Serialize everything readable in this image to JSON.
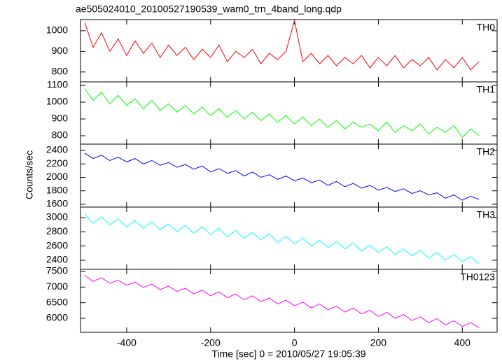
{
  "chart_data": [
    {
      "type": "line",
      "title": "ae505024010_20100527190539_wam0_trn_4band_long.qdp",
      "x": [
        -500,
        -480,
        -460,
        -440,
        -420,
        -400,
        -380,
        -360,
        -340,
        -320,
        -300,
        -280,
        -260,
        -240,
        -220,
        -200,
        -180,
        -160,
        -140,
        -120,
        -100,
        -80,
        -60,
        -40,
        -20,
        0,
        20,
        40,
        60,
        80,
        100,
        120,
        140,
        160,
        180,
        200,
        220,
        240,
        260,
        280,
        300,
        320,
        340,
        360,
        380,
        400,
        420,
        440
      ],
      "series": [
        {
          "name": "TH0",
          "color": "#ff0000",
          "values": [
            1040,
            920,
            990,
            900,
            960,
            880,
            950,
            890,
            940,
            870,
            930,
            880,
            920,
            860,
            910,
            870,
            930,
            850,
            900,
            870,
            910,
            840,
            890,
            860,
            900,
            1050,
            850,
            890,
            840,
            880,
            830,
            870,
            840,
            880,
            820,
            870,
            830,
            880,
            820,
            860,
            830,
            870,
            810,
            860,
            820,
            870,
            810,
            850
          ]
        }
      ],
      "xlim": [
        -510,
        483
      ],
      "xticks": [
        -400,
        -200,
        0,
        200,
        400
      ],
      "ylim": [
        752,
        1054
      ],
      "yticks": [
        800,
        900,
        1000
      ]
    },
    {
      "type": "line",
      "x": [
        -500,
        -480,
        -460,
        -440,
        -420,
        -400,
        -380,
        -360,
        -340,
        -320,
        -300,
        -280,
        -260,
        -240,
        -220,
        -200,
        -180,
        -160,
        -140,
        -120,
        -100,
        -80,
        -60,
        -40,
        -20,
        0,
        20,
        40,
        60,
        80,
        100,
        120,
        140,
        160,
        180,
        200,
        220,
        240,
        260,
        280,
        300,
        320,
        340,
        360,
        380,
        400,
        420,
        440
      ],
      "series": [
        {
          "name": "TH1",
          "color": "#00ff00",
          "values": [
            1080,
            1010,
            1060,
            990,
            1040,
            980,
            1020,
            960,
            1010,
            950,
            990,
            940,
            980,
            930,
            970,
            920,
            960,
            910,
            950,
            900,
            940,
            890,
            930,
            880,
            920,
            870,
            910,
            860,
            900,
            850,
            890,
            840,
            880,
            850,
            870,
            830,
            880,
            820,
            860,
            830,
            870,
            810,
            850,
            820,
            860,
            790,
            840,
            800
          ]
        }
      ],
      "xlim": [
        -510,
        483
      ],
      "xticks": [
        -400,
        -200,
        0,
        200,
        400
      ],
      "ylim": [
        750,
        1121
      ],
      "yticks": [
        800,
        900,
        1000,
        1100
      ]
    },
    {
      "type": "line",
      "ylabel": "Counts/sec",
      "x": [
        -500,
        -480,
        -460,
        -440,
        -420,
        -400,
        -380,
        -360,
        -340,
        -320,
        -300,
        -280,
        -260,
        -240,
        -220,
        -200,
        -180,
        -160,
        -140,
        -120,
        -100,
        -80,
        -60,
        -40,
        -20,
        0,
        20,
        40,
        60,
        80,
        100,
        120,
        140,
        160,
        180,
        200,
        220,
        240,
        260,
        280,
        300,
        320,
        340,
        360,
        380,
        400,
        420,
        440
      ],
      "series": [
        {
          "name": "TH2",
          "color": "#0000ff",
          "values": [
            2360,
            2280,
            2330,
            2250,
            2300,
            2230,
            2280,
            2200,
            2250,
            2180,
            2220,
            2150,
            2190,
            2120,
            2170,
            2080,
            2130,
            2060,
            2100,
            2020,
            2080,
            2000,
            2040,
            1970,
            2020,
            1950,
            1990,
            1920,
            1960,
            1880,
            1940,
            1860,
            1910,
            1840,
            1880,
            1810,
            1850,
            1790,
            1830,
            1760,
            1800,
            1740,
            1770,
            1690,
            1740,
            1660,
            1720,
            1670
          ]
        }
      ],
      "xlim": [
        -510,
        483
      ],
      "xticks": [
        -400,
        -200,
        0,
        200,
        400
      ],
      "ylim": [
        1558,
        2494
      ],
      "yticks": [
        1600,
        1800,
        2000,
        2200,
        2400
      ]
    },
    {
      "type": "line",
      "x": [
        -500,
        -480,
        -460,
        -440,
        -420,
        -400,
        -380,
        -360,
        -340,
        -320,
        -300,
        -280,
        -260,
        -240,
        -220,
        -200,
        -180,
        -160,
        -140,
        -120,
        -100,
        -80,
        -60,
        -40,
        -20,
        0,
        20,
        40,
        60,
        80,
        100,
        120,
        140,
        160,
        180,
        200,
        220,
        240,
        260,
        280,
        300,
        320,
        340,
        360,
        380,
        400,
        420,
        440
      ],
      "series": [
        {
          "name": "TH3",
          "color": "#00ffff",
          "values": [
            3050,
            2920,
            3010,
            2900,
            2980,
            2870,
            2960,
            2850,
            2940,
            2830,
            2910,
            2800,
            2890,
            2780,
            2870,
            2760,
            2850,
            2730,
            2820,
            2710,
            2790,
            2690,
            2770,
            2650,
            2740,
            2630,
            2710,
            2600,
            2680,
            2580,
            2660,
            2560,
            2640,
            2530,
            2610,
            2510,
            2590,
            2480,
            2560,
            2460,
            2540,
            2430,
            2510,
            2400,
            2480,
            2380,
            2450,
            2350
          ]
        }
      ],
      "xlim": [
        -510,
        483
      ],
      "xticks": [
        -400,
        -200,
        0,
        200,
        400
      ],
      "ylim": [
        2272,
        3148
      ],
      "yticks": [
        2400,
        2600,
        2800,
        3000
      ]
    },
    {
      "type": "line",
      "xlabel": "Time [sec] 0 = 2010/05/27 19:05:39",
      "x": [
        -500,
        -480,
        -460,
        -440,
        -420,
        -400,
        -380,
        -360,
        -340,
        -320,
        -300,
        -280,
        -260,
        -240,
        -220,
        -200,
        -180,
        -160,
        -140,
        -120,
        -100,
        -80,
        -60,
        -40,
        -20,
        0,
        20,
        40,
        60,
        80,
        100,
        120,
        140,
        160,
        180,
        200,
        220,
        240,
        260,
        280,
        300,
        320,
        340,
        360,
        380,
        400,
        420,
        440
      ],
      "series": [
        {
          "name": "TH0123",
          "color": "#ff00ff",
          "values": [
            7380,
            7180,
            7300,
            7120,
            7220,
            7060,
            7160,
            6990,
            7100,
            6920,
            7030,
            6860,
            6960,
            6780,
            6900,
            6720,
            6850,
            6660,
            6780,
            6590,
            6720,
            6530,
            6650,
            6460,
            6580,
            6400,
            6520,
            6330,
            6460,
            6270,
            6390,
            6200,
            6330,
            6140,
            6260,
            6060,
            6190,
            6000,
            6120,
            5930,
            6050,
            5860,
            5990,
            5790,
            5920,
            5740,
            5860,
            5700
          ]
        }
      ],
      "xlim": [
        -510,
        483
      ],
      "xticks": [
        -400,
        -200,
        0,
        200,
        400
      ],
      "ylim": [
        5552,
        7567
      ],
      "yticks": [
        6000,
        6500,
        7000,
        7500
      ]
    }
  ]
}
